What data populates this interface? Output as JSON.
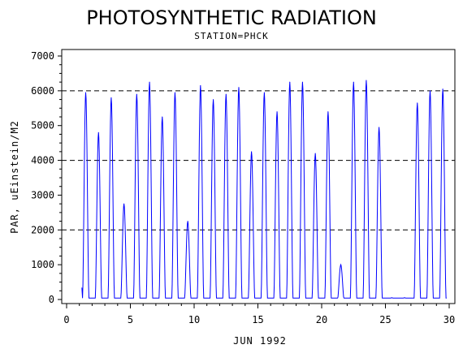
{
  "chart_data": {
    "type": "line",
    "title": "PHOTOSYNTHETIC RADIATION",
    "subtitle": "STATION=PHCK",
    "xlabel": "JUN 1992",
    "ylabel": "PAR, uEinstein/M2",
    "xlim": [
      0,
      30
    ],
    "ylim": [
      0,
      7000
    ],
    "x_ticks": [
      0,
      5,
      10,
      15,
      20,
      25,
      30
    ],
    "y_ticks": [
      0,
      1000,
      2000,
      3000,
      4000,
      5000,
      6000,
      7000
    ],
    "reference_lines": [
      2000,
      4000,
      6000
    ],
    "line_color": "#0000ff",
    "daily_peaks": [
      {
        "day": 1,
        "peak": 5950
      },
      {
        "day": 2,
        "peak": 4800
      },
      {
        "day": 3,
        "peak": 5800
      },
      {
        "day": 4,
        "peak": 2750
      },
      {
        "day": 5,
        "peak": 5900
      },
      {
        "day": 6,
        "peak": 6250
      },
      {
        "day": 7,
        "peak": 5250
      },
      {
        "day": 8,
        "peak": 5950
      },
      {
        "day": 9,
        "peak": 2250
      },
      {
        "day": 10,
        "peak": 6150
      },
      {
        "day": 11,
        "peak": 5750
      },
      {
        "day": 12,
        "peak": 5900
      },
      {
        "day": 13,
        "peak": 6100
      },
      {
        "day": 14,
        "peak": 4250
      },
      {
        "day": 15,
        "peak": 5950
      },
      {
        "day": 16,
        "peak": 5400
      },
      {
        "day": 17,
        "peak": 6250
      },
      {
        "day": 18,
        "peak": 6250
      },
      {
        "day": 19,
        "peak": 4200
      },
      {
        "day": 20,
        "peak": 5400
      },
      {
        "day": 21,
        "peak": 1000
      },
      {
        "day": 22,
        "peak": 6250
      },
      {
        "day": 23,
        "peak": 6300
      },
      {
        "day": 24,
        "peak": 4950
      },
      {
        "day": 25,
        "peak": 50
      },
      {
        "day": 26,
        "peak": 50
      },
      {
        "day": 27,
        "peak": 5650
      },
      {
        "day": 28,
        "peak": 6000
      },
      {
        "day": 29,
        "peak": 6050
      }
    ]
  }
}
